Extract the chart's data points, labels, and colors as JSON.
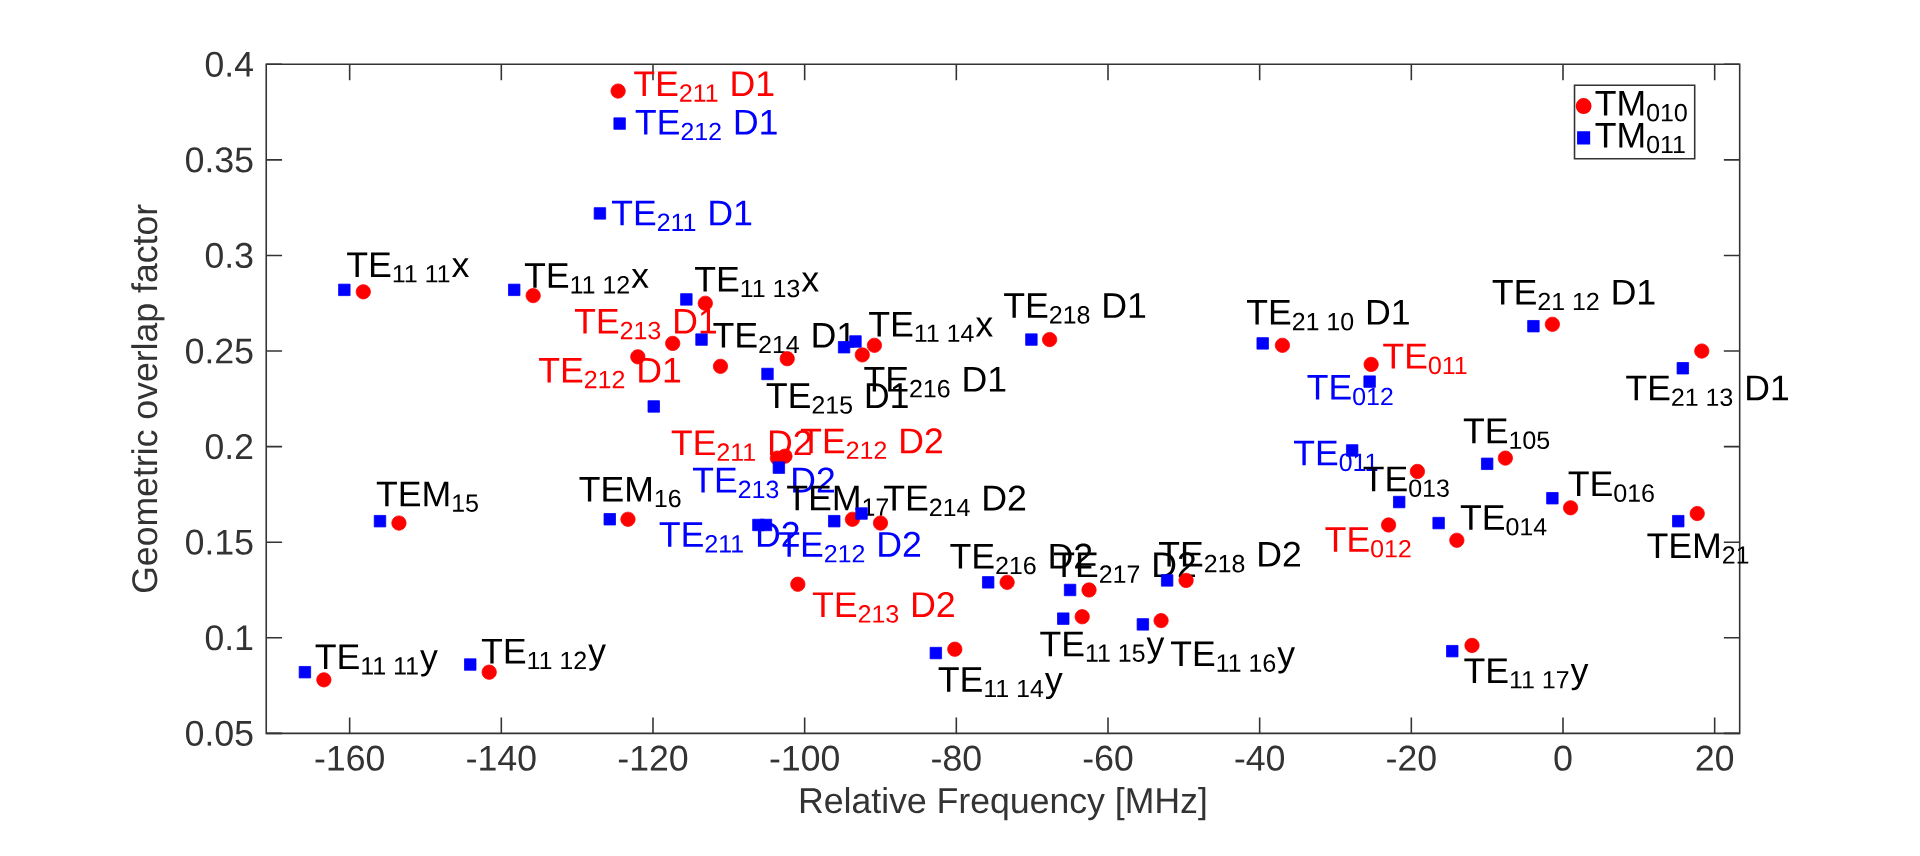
{
  "chart_data": {
    "type": "scatter",
    "xlabel": "Relative Frequency [MHz]",
    "ylabel": "Geometric overlap factor",
    "xlim": [
      -171,
      23.3
    ],
    "ylim": [
      0.05,
      0.4
    ],
    "xticks": [
      -160,
      -140,
      -120,
      -100,
      -80,
      -60,
      -40,
      -20,
      0,
      20
    ],
    "yticks": [
      0.05,
      0.1,
      0.15,
      0.2,
      0.25,
      0.3,
      0.35,
      0.4
    ],
    "grid": false,
    "legend": "top right",
    "series": [
      {
        "name": "TM$_{010}$",
        "color": "#ff0000",
        "marker": "circle",
        "x": [
          -124.6,
          -158.2,
          -135.8,
          -113.1,
          -117.4,
          -122.0,
          -111.1,
          -102.3,
          -90.8,
          -92.4,
          -67.7,
          -37.0,
          -25.3,
          -1.4,
          18.3,
          -153.5,
          -123.3,
          -163.4,
          -141.6,
          -103.6,
          -102.6,
          -93.7,
          -90.0,
          -100.9,
          -73.3,
          -62.5,
          -49.7,
          -63.4,
          -53.0,
          -80.2,
          -19.2,
          -23.0,
          -14.0,
          -7.6,
          1.0,
          17.7,
          -12.0
        ],
        "values": [
          0.386,
          0.281,
          0.279,
          0.275,
          0.254,
          0.247,
          0.242,
          0.246,
          0.253,
          0.248,
          0.256,
          0.253,
          0.243,
          0.264,
          0.25,
          0.16,
          0.162,
          0.078,
          0.082,
          0.194,
          0.195,
          0.162,
          0.16,
          0.128,
          0.129,
          0.125,
          0.13,
          0.111,
          0.109,
          0.094,
          0.187,
          0.159,
          0.151,
          0.194,
          0.168,
          0.165,
          0.096
        ]
      },
      {
        "name": "TM$_{011}$",
        "color": "#0000ff",
        "marker": "square",
        "x": [
          -124.4,
          -127.0,
          -160.7,
          -138.3,
          -115.6,
          -113.6,
          -104.9,
          -119.9,
          -94.8,
          -93.3,
          -70.1,
          -39.6,
          -25.5,
          -3.9,
          15.8,
          -156.0,
          -125.7,
          -165.9,
          -144.1,
          -103.4,
          -106.1,
          -105.1,
          -96.1,
          -92.5,
          -75.8,
          -65.0,
          -52.2,
          -65.9,
          -55.4,
          -82.7,
          -27.8,
          -21.6,
          -16.4,
          -10.0,
          -1.4,
          15.2,
          -14.6
        ],
        "values": [
          0.369,
          0.322,
          0.282,
          0.282,
          0.277,
          0.256,
          0.238,
          0.221,
          0.252,
          0.255,
          0.256,
          0.254,
          0.234,
          0.263,
          0.241,
          0.161,
          0.162,
          0.082,
          0.086,
          0.189,
          0.159,
          0.159,
          0.161,
          0.165,
          0.129,
          0.125,
          0.13,
          0.11,
          0.107,
          0.092,
          0.198,
          0.171,
          0.16,
          0.191,
          0.173,
          0.161,
          0.093
        ]
      }
    ],
    "annotations": [
      {
        "text": "TE$_{211}$ D1",
        "x": -124.6,
        "y": 0.386
      },
      {
        "text": "TE$_{212}$ D1",
        "x": -124.4,
        "y": 0.369
      },
      {
        "text": "TE$_{211}$ D1",
        "x": -127.0,
        "y": 0.322
      },
      {
        "text": "TE$_{11 11}$x",
        "x": -159.45,
        "y": 0.2815
      },
      {
        "text": "TE$_{11 12}$x",
        "x": -137.05,
        "y": 0.2805
      },
      {
        "text": "TE$_{11 13}$x",
        "x": -114.35,
        "y": 0.276
      },
      {
        "text": "TE$_{213}$ D1",
        "x": -117.4,
        "y": 0.254
      },
      {
        "text": "TE$_{212}$ D1",
        "x": -122.0,
        "y": 0.247
      },
      {
        "text": "TE$_{214}$ D1",
        "x": -113.5,
        "y": 0.256
      },
      {
        "text": "TE$_{215}$ D1",
        "x": -103.6,
        "y": 0.242
      },
      {
        "text": "TE$_{11 14}$x",
        "x": -92.05,
        "y": 0.254
      },
      {
        "text": "TE$_{216}$ D1",
        "x": -93.6,
        "y": 0.25
      },
      {
        "text": "TE$_{218}$ D1",
        "x": -68.9,
        "y": 0.256
      },
      {
        "text": "TE$_{21 10}$ D1",
        "x": -38.3,
        "y": 0.2535
      },
      {
        "text": "TE$_{011}$",
        "x": -25.3,
        "y": 0.243
      },
      {
        "text": "TE$_{012}$",
        "x": -25.5,
        "y": 0.234
      },
      {
        "text": "TE$_{21 12}$ D1",
        "x": -2.65,
        "y": 0.2635
      },
      {
        "text": "TE$_{21 13}$ D1",
        "x": 17.05,
        "y": 0.2455
      },
      {
        "text": "TEM$_{15}$",
        "x": -154.75,
        "y": 0.1605
      },
      {
        "text": "TEM$_{16}$",
        "x": -124.5,
        "y": 0.162
      },
      {
        "text": "TE$_{11 11}$y",
        "x": -164.65,
        "y": 0.08
      },
      {
        "text": "TE$_{11 12}$y",
        "x": -142.85,
        "y": 0.084
      },
      {
        "text": "TE$_{211}$ D2",
        "x": -103.6,
        "y": 0.194
      },
      {
        "text": "TE$_{212}$ D2",
        "x": -102.6,
        "y": 0.195
      },
      {
        "text": "TE$_{213}$ D2",
        "x": -103.4,
        "y": 0.189
      },
      {
        "text": "TE$_{211}$ D2",
        "x": -106.1,
        "y": 0.159
      },
      {
        "text": "TE$_{212}$ D2",
        "x": -105.1,
        "y": 0.159
      },
      {
        "text": "TEM$_{17}$",
        "x": -94.9,
        "y": 0.1615
      },
      {
        "text": "TE$_{214}$ D2",
        "x": -91.25,
        "y": 0.1625
      },
      {
        "text": "TE$_{213}$ D2",
        "x": -100.9,
        "y": 0.128
      },
      {
        "text": "TE$_{216}$ D2",
        "x": -74.55,
        "y": 0.129
      },
      {
        "text": "TE$_{217}$ D2",
        "x": -63.75,
        "y": 0.125
      },
      {
        "text": "TE$_{218}$ D2",
        "x": -50.95,
        "y": 0.13
      },
      {
        "text": "TE$_{11 14}$y",
        "x": -81.45,
        "y": 0.093
      },
      {
        "text": "TE$_{11 15}$y",
        "x": -64.65,
        "y": 0.1105
      },
      {
        "text": "TE$_{11 16}$y",
        "x": -54.2,
        "y": 0.108
      },
      {
        "text": "TE$_{011}$",
        "x": -27.8,
        "y": 0.198
      },
      {
        "text": "TE$_{013}$",
        "x": -21.5,
        "y": 0.171
      },
      {
        "text": "TE$_{012}$",
        "x": -23.0,
        "y": 0.159
      },
      {
        "text": "TE$_{014}$",
        "x": -15.2,
        "y": 0.1555
      },
      {
        "text": "TE$_{105}$",
        "x": -8.8,
        "y": 0.1925
      },
      {
        "text": "TE$_{016}$",
        "x": -0.2,
        "y": 0.1705
      },
      {
        "text": "TEM$_{21}$",
        "x": 16.45,
        "y": 0.163
      },
      {
        "text": "TE$_{11 17}$y",
        "x": -13.3,
        "y": 0.0945
      }
    ]
  }
}
